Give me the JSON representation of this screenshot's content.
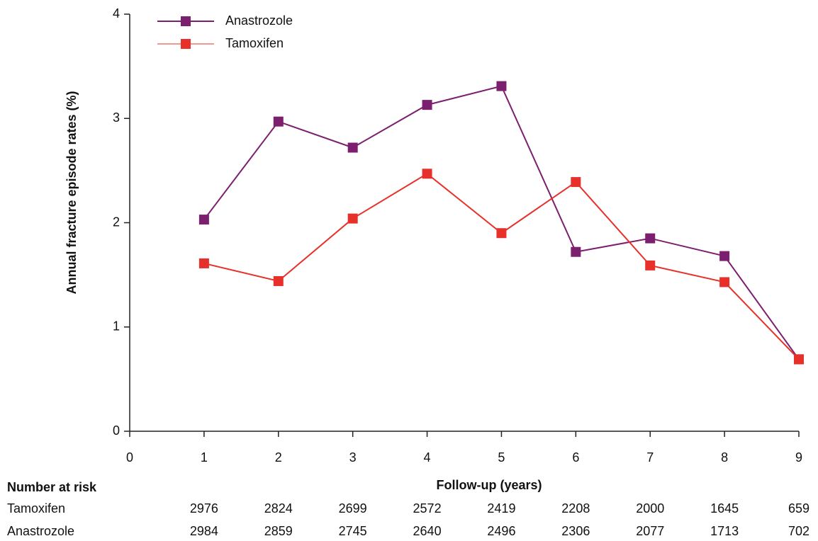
{
  "chart_data": {
    "type": "line",
    "x_label": "Follow-up (years)",
    "y_label": "Annual fracture episode rates (%)",
    "x": [
      1,
      2,
      3,
      4,
      5,
      6,
      7,
      8,
      9
    ],
    "series": [
      {
        "name": "Anastrozole",
        "color": "#7b1f6e",
        "values": [
          2.03,
          2.97,
          2.72,
          3.13,
          3.31,
          1.72,
          1.85,
          1.68,
          0.69
        ]
      },
      {
        "name": "Tamoxifen",
        "color": "#e8302a",
        "values": [
          1.61,
          1.44,
          2.04,
          2.47,
          1.9,
          2.39,
          1.59,
          1.43,
          0.69
        ]
      }
    ],
    "xlim": [
      0,
      9
    ],
    "xticks": [
      0,
      1,
      2,
      3,
      4,
      5,
      6,
      7,
      8,
      9
    ],
    "ylim": [
      0,
      4
    ],
    "yticks": [
      0,
      1,
      2,
      3,
      4
    ],
    "grid": false,
    "legend": "top-left"
  },
  "risk_table": {
    "title": "Number at risk",
    "rows": [
      {
        "label": "Tamoxifen",
        "values": [
          "2976",
          "2824",
          "2699",
          "2572",
          "2419",
          "2208",
          "2000",
          "1645",
          "659"
        ]
      },
      {
        "label": "Anastrozole",
        "values": [
          "2984",
          "2859",
          "2745",
          "2640",
          "2496",
          "2306",
          "2077",
          "1713",
          "702"
        ]
      }
    ]
  }
}
